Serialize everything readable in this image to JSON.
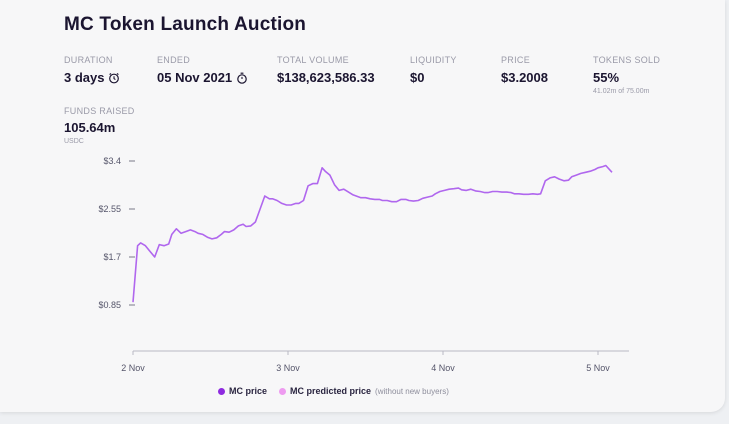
{
  "title": "MC Token Launch Auction",
  "stats": {
    "duration": {
      "label": "DURATION",
      "value": "3 days",
      "icon": "alarm-clock-icon"
    },
    "ended": {
      "label": "ENDED",
      "value": "05 Nov 2021",
      "icon": "stopwatch-icon"
    },
    "total_volume": {
      "label": "TOTAL VOLUME",
      "value": "$138,623,586.33"
    },
    "liquidity": {
      "label": "LIQUIDITY",
      "value": "$0"
    },
    "price": {
      "label": "PRICE",
      "value": "$3.2008"
    },
    "tokens_sold": {
      "label": "TOKENS SOLD",
      "value": "55%",
      "sub": "41.02m of 75.00m"
    },
    "funds_raised": {
      "label": "FUNDS RAISED",
      "value": "105.64m",
      "sub": "USDC"
    }
  },
  "legend": {
    "mc_price": {
      "label": "MC price",
      "color": "#8e2ae0"
    },
    "mc_predicted": {
      "label": "MC predicted price",
      "note": "(without new buyers)",
      "color": "#ee9bf0"
    }
  },
  "colors": {
    "line": "#b067ee",
    "axis": "#b8b8c4"
  },
  "chart_data": {
    "type": "line",
    "title": "",
    "xlabel": "",
    "ylabel": "",
    "xlim": [
      2,
      5.2
    ],
    "ylim": [
      0.85,
      3.4
    ],
    "x_ticks": [
      {
        "value": 2,
        "label": "2 Nov"
      },
      {
        "value": 3,
        "label": "3 Nov"
      },
      {
        "value": 4,
        "label": "4 Nov"
      },
      {
        "value": 5,
        "label": "5 Nov"
      }
    ],
    "y_ticks": [
      {
        "value": 0.85,
        "label": "$0.85"
      },
      {
        "value": 1.7,
        "label": "$1.7"
      },
      {
        "value": 2.55,
        "label": "$2.55"
      },
      {
        "value": 3.4,
        "label": "$3.4"
      }
    ],
    "series": [
      {
        "name": "MC price",
        "x": [
          2.0,
          2.03,
          2.05,
          2.08,
          2.11,
          2.14,
          2.17,
          2.2,
          2.23,
          2.25,
          2.28,
          2.31,
          2.34,
          2.37,
          2.4,
          2.42,
          2.45,
          2.48,
          2.51,
          2.54,
          2.57,
          2.59,
          2.62,
          2.65,
          2.68,
          2.71,
          2.73,
          2.76,
          2.79,
          2.82,
          2.85,
          2.88,
          2.9,
          2.93,
          2.96,
          2.99,
          3.02,
          3.05,
          3.07,
          3.1,
          3.13,
          3.16,
          3.19,
          3.22,
          3.24,
          3.27,
          3.3,
          3.33,
          3.36,
          3.39,
          3.42,
          3.44,
          3.47,
          3.5,
          3.53,
          3.56,
          3.59,
          3.61,
          3.64,
          3.67,
          3.7,
          3.73,
          3.76,
          3.78,
          3.81,
          3.84,
          3.87,
          3.9,
          3.93,
          3.95,
          3.98,
          4.01,
          4.04,
          4.07,
          4.1,
          4.12,
          4.15,
          4.18,
          4.21,
          4.24,
          4.27,
          4.29,
          4.32,
          4.35,
          4.38,
          4.41,
          4.44,
          4.46,
          4.49,
          4.52,
          4.55,
          4.58,
          4.61,
          4.63,
          4.66,
          4.69,
          4.72,
          4.75,
          4.78,
          4.81,
          4.83,
          4.86,
          4.89,
          4.92,
          4.95,
          4.98,
          5.0,
          5.03,
          5.05,
          5.09
        ],
        "y": [
          0.9,
          1.9,
          1.95,
          1.9,
          1.8,
          1.7,
          1.92,
          1.9,
          1.93,
          2.1,
          2.2,
          2.12,
          2.15,
          2.18,
          2.15,
          2.12,
          2.1,
          2.05,
          2.02,
          2.04,
          2.1,
          2.15,
          2.14,
          2.18,
          2.25,
          2.28,
          2.24,
          2.25,
          2.32,
          2.55,
          2.78,
          2.73,
          2.73,
          2.7,
          2.65,
          2.62,
          2.62,
          2.65,
          2.65,
          2.7,
          2.96,
          3.0,
          3.0,
          3.28,
          3.22,
          3.15,
          2.98,
          2.88,
          2.9,
          2.85,
          2.8,
          2.78,
          2.75,
          2.75,
          2.73,
          2.72,
          2.72,
          2.7,
          2.7,
          2.68,
          2.68,
          2.72,
          2.72,
          2.7,
          2.69,
          2.7,
          2.74,
          2.76,
          2.78,
          2.82,
          2.86,
          2.88,
          2.9,
          2.91,
          2.92,
          2.89,
          2.88,
          2.9,
          2.87,
          2.86,
          2.84,
          2.84,
          2.86,
          2.86,
          2.85,
          2.85,
          2.84,
          2.82,
          2.82,
          2.81,
          2.81,
          2.82,
          2.81,
          2.82,
          3.05,
          3.1,
          3.12,
          3.08,
          3.05,
          3.06,
          3.12,
          3.15,
          3.18,
          3.2,
          3.22,
          3.25,
          3.28,
          3.3,
          3.32,
          3.2
        ]
      }
    ],
    "grid": false,
    "legend_position": "bottom-center"
  }
}
